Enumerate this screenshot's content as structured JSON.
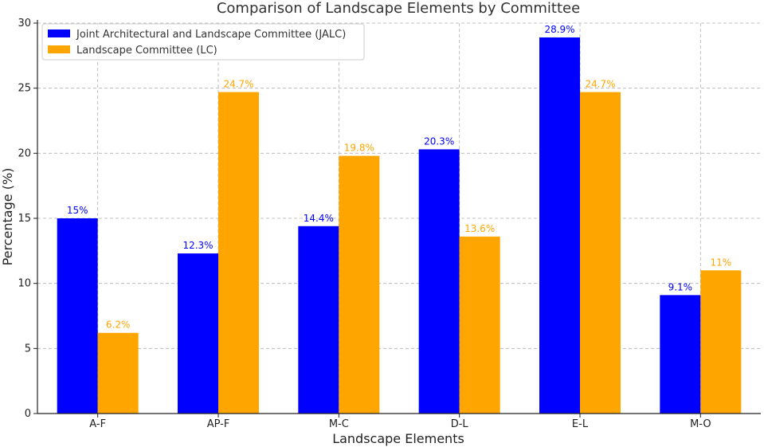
{
  "chart_data": {
    "type": "bar",
    "title": "Comparison of Landscape Elements by Committee",
    "xlabel": "Landscape Elements",
    "ylabel": "Percentage (%)",
    "categories": [
      "A-F",
      "AP-F",
      "M-C",
      "D-L",
      "E-L",
      "M-O"
    ],
    "series": [
      {
        "name": "Joint Architectural and Landscape Committee (JALC)",
        "color": "#0000ff",
        "values": [
          15,
          12.3,
          14.4,
          20.3,
          28.9,
          9.1
        ],
        "labels": [
          "15%",
          "12.3%",
          "14.4%",
          "20.3%",
          "28.9%",
          "9.1%"
        ]
      },
      {
        "name": "Landscape Committee (LC)",
        "color": "#ffa500",
        "values": [
          6.2,
          24.7,
          19.8,
          13.6,
          24.7,
          11
        ],
        "labels": [
          "6.2%",
          "24.7%",
          "19.8%",
          "13.6%",
          "24.7%",
          "11%"
        ]
      }
    ],
    "ylim": [
      0,
      30
    ],
    "yticks": [
      "0",
      "5",
      "10",
      "15",
      "20",
      "25",
      "30"
    ],
    "grid": true,
    "legend_position": "top-left"
  }
}
